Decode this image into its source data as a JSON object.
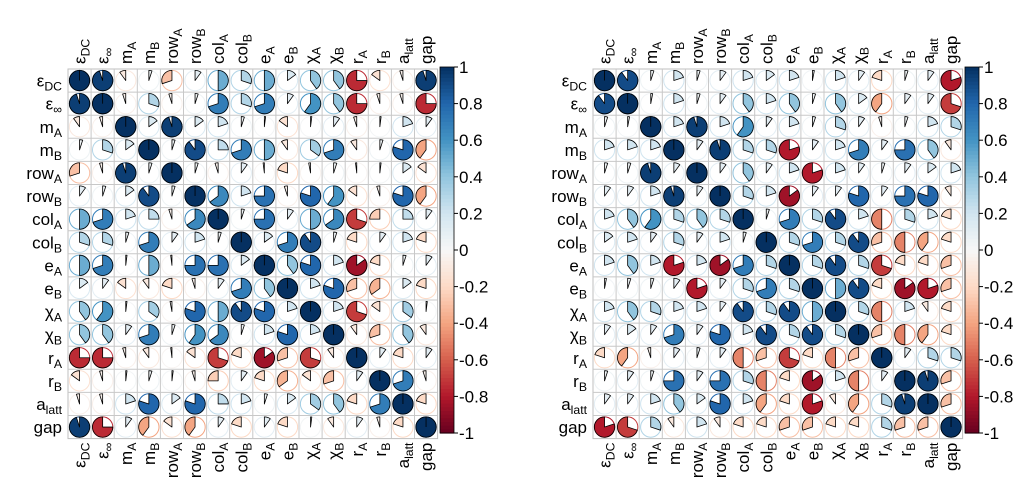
{
  "chart_data": [
    {
      "type": "heatmap",
      "style": "pie-correlogram",
      "title": "",
      "variables": [
        "ε_DC",
        "ε_∞",
        "m_A",
        "m_B",
        "row_A",
        "row_B",
        "col_A",
        "col_B",
        "e_A",
        "e_B",
        "χ_A",
        "χ_B",
        "r_A",
        "r_B",
        "a_latt",
        "gap"
      ],
      "colorbar": {
        "ticks": [
          1,
          0.8,
          0.6,
          0.4,
          0.2,
          0,
          -0.2,
          -0.4,
          -0.6,
          -0.8,
          -1
        ],
        "range": [
          -1,
          1
        ]
      },
      "grid": true,
      "values": [
        [
          1.0,
          0.95,
          -0.1,
          0.05,
          -0.3,
          0.1,
          0.5,
          0.3,
          0.5,
          0.15,
          0.4,
          0.4,
          -0.75,
          -0.15,
          -0.05,
          0.95
        ],
        [
          0.95,
          1.0,
          -0.05,
          0.3,
          -0.05,
          0.05,
          0.7,
          0.3,
          0.7,
          0.1,
          0.6,
          0.4,
          -0.75,
          -0.05,
          -0.05,
          -0.75
        ],
        [
          -0.1,
          -0.05,
          1.0,
          0.15,
          0.95,
          0.15,
          0.2,
          0.05,
          0.02,
          -0.15,
          0.02,
          0.1,
          -0.05,
          0.02,
          0.2,
          0.1
        ],
        [
          0.05,
          0.3,
          0.15,
          1.0,
          0.05,
          0.9,
          0.25,
          0.7,
          0.5,
          -0.1,
          0.35,
          0.7,
          -0.1,
          0.05,
          0.8,
          -0.4
        ],
        [
          -0.3,
          -0.05,
          0.95,
          0.05,
          1.0,
          0.05,
          -0.05,
          0.1,
          -0.02,
          -0.2,
          -0.03,
          0.05,
          -0.02,
          0.02,
          0.15,
          -0.15
        ],
        [
          0.1,
          0.05,
          0.15,
          0.9,
          0.05,
          1.0,
          0.65,
          0.2,
          0.75,
          -0.05,
          0.8,
          0.6,
          -0.15,
          -0.05,
          0.8,
          -0.4
        ],
        [
          0.5,
          0.7,
          0.2,
          0.25,
          -0.05,
          0.65,
          1.0,
          0.05,
          0.75,
          0.1,
          0.5,
          0.65,
          -0.7,
          -0.25,
          0.25,
          0.1
        ],
        [
          0.3,
          0.3,
          0.05,
          0.7,
          0.1,
          0.2,
          0.05,
          1.0,
          0.15,
          0.7,
          0.9,
          0.05,
          -0.2,
          0.1,
          0.2,
          -0.2
        ],
        [
          0.5,
          0.7,
          0.02,
          0.5,
          -0.02,
          0.75,
          0.75,
          0.15,
          1.0,
          0.4,
          0.8,
          0.2,
          -0.85,
          -0.2,
          0.05,
          0.1
        ],
        [
          0.15,
          0.1,
          -0.15,
          -0.1,
          -0.2,
          -0.05,
          0.1,
          0.7,
          0.4,
          1.0,
          0.2,
          0.8,
          -0.3,
          -0.35,
          0.15,
          -0.2
        ],
        [
          0.4,
          0.6,
          0.02,
          0.35,
          -0.03,
          0.8,
          0.5,
          0.9,
          0.8,
          0.2,
          1.0,
          0.2,
          -0.7,
          -0.15,
          0.35,
          0.02
        ],
        [
          0.4,
          0.4,
          0.1,
          0.7,
          0.05,
          0.6,
          0.65,
          0.05,
          0.2,
          0.8,
          0.2,
          1.0,
          -0.1,
          -0.3,
          0.4,
          -0.1
        ],
        [
          -0.75,
          -0.75,
          -0.05,
          -0.1,
          -0.02,
          -0.15,
          -0.7,
          -0.2,
          -0.85,
          -0.3,
          -0.7,
          -0.1,
          1.0,
          0.1,
          -0.2,
          0.1
        ],
        [
          -0.15,
          -0.05,
          0.02,
          0.05,
          0.02,
          -0.05,
          -0.25,
          0.1,
          -0.2,
          -0.35,
          -0.15,
          -0.3,
          0.1,
          1.0,
          0.7,
          -0.05
        ],
        [
          -0.05,
          -0.05,
          0.2,
          0.8,
          0.15,
          0.8,
          0.25,
          0.2,
          0.05,
          0.15,
          0.35,
          0.4,
          -0.2,
          0.7,
          1.0,
          -0.2
        ],
        [
          0.95,
          -0.75,
          0.1,
          -0.4,
          -0.15,
          -0.4,
          0.1,
          -0.2,
          0.1,
          -0.2,
          0.02,
          -0.1,
          0.1,
          -0.05,
          -0.2,
          1.0
        ]
      ]
    },
    {
      "type": "heatmap",
      "style": "pie-correlogram",
      "title": "",
      "variables": [
        "ε_DC",
        "ε_∞",
        "m_A",
        "m_B",
        "row_A",
        "row_B",
        "col_A",
        "col_B",
        "e_A",
        "e_B",
        "χ_A",
        "χ_B",
        "r_A",
        "r_B",
        "a_latt",
        "gap"
      ],
      "colorbar": {
        "ticks": [
          1,
          0.8,
          0.6,
          0.4,
          0.2,
          0,
          -0.2,
          -0.4,
          -0.6,
          -0.8,
          -1
        ],
        "range": [
          -1,
          1
        ]
      },
      "grid": true,
      "values": [
        [
          1.0,
          0.9,
          0.05,
          0.2,
          0.05,
          0.1,
          0.2,
          0.15,
          0.2,
          0.03,
          0.2,
          0.1,
          -0.2,
          0.05,
          0.1,
          -0.8
        ],
        [
          0.9,
          1.0,
          0.03,
          0.2,
          0.05,
          0.1,
          0.4,
          0.2,
          0.4,
          0.05,
          0.4,
          0.15,
          -0.4,
          0.1,
          0.1,
          -0.7
        ],
        [
          0.05,
          0.03,
          1.0,
          0.2,
          0.95,
          0.2,
          0.6,
          0.1,
          0.2,
          0.05,
          0.3,
          0.1,
          -0.05,
          0.05,
          0.2,
          0.3
        ],
        [
          0.2,
          0.2,
          0.2,
          1.0,
          0.1,
          0.95,
          0.3,
          0.3,
          -0.8,
          0.1,
          0.2,
          0.7,
          0.1,
          0.75,
          0.4,
          -0.1
        ],
        [
          0.05,
          0.05,
          0.95,
          0.1,
          1.0,
          0.1,
          0.4,
          0.1,
          0.2,
          -0.8,
          0.2,
          0.1,
          0.05,
          0.1,
          0.15,
          0.2
        ],
        [
          0.1,
          0.1,
          0.2,
          0.95,
          0.1,
          1.0,
          0.3,
          0.2,
          -0.85,
          0.1,
          0.1,
          0.8,
          0.1,
          0.75,
          0.8,
          -0.1
        ],
        [
          0.2,
          0.4,
          0.6,
          0.3,
          0.4,
          0.3,
          1.0,
          0.05,
          0.7,
          0.3,
          0.9,
          0.2,
          -0.5,
          0.3,
          0.2,
          -0.2
        ],
        [
          0.15,
          0.2,
          0.1,
          0.3,
          0.1,
          0.2,
          0.05,
          1.0,
          0.3,
          0.7,
          0.3,
          0.9,
          -0.3,
          -0.5,
          -0.4,
          -0.2
        ],
        [
          0.2,
          0.4,
          0.2,
          -0.8,
          0.2,
          -0.85,
          0.7,
          0.3,
          1.0,
          0.3,
          0.9,
          0.3,
          -0.7,
          -0.2,
          -0.2,
          -0.3
        ],
        [
          0.03,
          0.05,
          0.05,
          0.1,
          -0.8,
          0.1,
          0.3,
          0.7,
          0.3,
          1.0,
          0.5,
          0.9,
          -0.2,
          -0.85,
          -0.8,
          -0.3
        ],
        [
          0.2,
          0.4,
          0.3,
          0.2,
          0.2,
          0.1,
          0.9,
          0.3,
          0.9,
          0.5,
          1.0,
          0.3,
          -0.5,
          0.2,
          -0.1,
          -0.2
        ],
        [
          0.1,
          0.15,
          0.1,
          0.7,
          0.1,
          0.8,
          0.2,
          0.9,
          0.3,
          0.9,
          0.3,
          1.0,
          -0.3,
          -0.5,
          -0.4,
          -0.2
        ],
        [
          -0.2,
          -0.4,
          -0.05,
          0.1,
          0.05,
          0.1,
          -0.5,
          -0.3,
          -0.7,
          -0.2,
          -0.5,
          -0.3,
          1.0,
          0.1,
          0.3,
          0.3
        ],
        [
          0.05,
          0.1,
          0.05,
          0.75,
          0.1,
          0.75,
          0.3,
          -0.5,
          -0.2,
          -0.85,
          0.2,
          -0.5,
          0.1,
          1.0,
          0.95,
          -0.3
        ],
        [
          0.1,
          0.1,
          0.2,
          0.4,
          0.15,
          0.8,
          0.2,
          -0.4,
          -0.2,
          -0.8,
          -0.1,
          -0.4,
          0.3,
          0.95,
          1.0,
          -0.3
        ],
        [
          -0.8,
          -0.7,
          0.3,
          -0.1,
          0.2,
          -0.1,
          -0.2,
          -0.2,
          -0.3,
          -0.3,
          -0.2,
          -0.2,
          0.3,
          -0.3,
          -0.3,
          1.0
        ]
      ]
    }
  ],
  "label_text": [
    {
      "base": "ε",
      "sub": "DC"
    },
    {
      "base": "ε",
      "sub": "∞"
    },
    {
      "base": "m",
      "sub": "A"
    },
    {
      "base": "m",
      "sub": "B"
    },
    {
      "base": "row",
      "sub": "A"
    },
    {
      "base": "row",
      "sub": "B"
    },
    {
      "base": "col",
      "sub": "A"
    },
    {
      "base": "col",
      "sub": "B"
    },
    {
      "base": "e",
      "sub": "A"
    },
    {
      "base": "e",
      "sub": "B"
    },
    {
      "base": "χ",
      "sub": "A"
    },
    {
      "base": "χ",
      "sub": "B"
    },
    {
      "base": "r",
      "sub": "A"
    },
    {
      "base": "r",
      "sub": "B"
    },
    {
      "base": "a",
      "sub": "latt"
    },
    {
      "base": "gap",
      "sub": ""
    }
  ],
  "colorbar_labels": [
    "1",
    "0.8",
    "0.6",
    "0.4",
    "0.2",
    "0",
    "-0.2",
    "-0.4",
    "-0.6",
    "-0.8",
    "-1"
  ]
}
